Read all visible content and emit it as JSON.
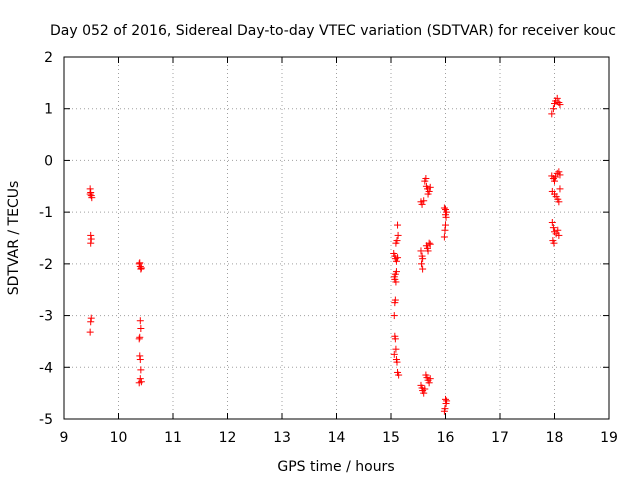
{
  "chart_data": {
    "type": "scatter",
    "title": "Day 052 of 2016, Sidereal Day-to-day VTEC variation (SDTVAR) for receiver kouc",
    "xlabel": "GPS time / hours",
    "ylabel": "SDTVAR / TECUs",
    "xlim": [
      9,
      19
    ],
    "ylim": [
      -5,
      2
    ],
    "xticks": [
      "9",
      "10",
      "11",
      "12",
      "13",
      "14",
      "15",
      "16",
      "17",
      "18",
      "19"
    ],
    "yticks": [
      "2",
      "1",
      "0",
      "-1",
      "-2",
      "-3",
      "-4",
      "-5"
    ],
    "grid": true,
    "marker": "+",
    "color": "#ff0000",
    "series": [
      {
        "name": "SDTVAR",
        "points": [
          [
            9.48,
            -0.55
          ],
          [
            9.49,
            -0.62
          ],
          [
            9.5,
            -0.68
          ],
          [
            9.51,
            -0.72
          ],
          [
            9.48,
            -0.65
          ],
          [
            9.49,
            -1.45
          ],
          [
            9.5,
            -1.52
          ],
          [
            9.49,
            -1.6
          ],
          [
            9.5,
            -3.05
          ],
          [
            9.49,
            -3.12
          ],
          [
            9.48,
            -3.32
          ],
          [
            10.38,
            -2.0
          ],
          [
            10.4,
            -2.05
          ],
          [
            10.42,
            -2.08
          ],
          [
            10.39,
            -1.98
          ],
          [
            10.41,
            -2.1
          ],
          [
            10.4,
            -3.1
          ],
          [
            10.41,
            -3.25
          ],
          [
            10.39,
            -3.42
          ],
          [
            10.38,
            -3.45
          ],
          [
            10.39,
            -3.78
          ],
          [
            10.4,
            -3.85
          ],
          [
            10.41,
            -4.05
          ],
          [
            10.4,
            -4.22
          ],
          [
            10.42,
            -4.28
          ],
          [
            10.38,
            -4.3
          ],
          [
            15.05,
            -1.8
          ],
          [
            15.07,
            -1.85
          ],
          [
            15.08,
            -1.9
          ],
          [
            15.1,
            -1.95
          ],
          [
            15.12,
            -1.88
          ],
          [
            15.09,
            -1.6
          ],
          [
            15.11,
            -1.55
          ],
          [
            15.13,
            -1.45
          ],
          [
            15.12,
            -1.25
          ],
          [
            15.08,
            -2.2
          ],
          [
            15.06,
            -2.25
          ],
          [
            15.07,
            -2.3
          ],
          [
            15.09,
            -2.35
          ],
          [
            15.1,
            -2.15
          ],
          [
            15.08,
            -2.7
          ],
          [
            15.07,
            -2.75
          ],
          [
            15.06,
            -3.0
          ],
          [
            15.07,
            -3.4
          ],
          [
            15.08,
            -3.45
          ],
          [
            15.09,
            -3.65
          ],
          [
            15.06,
            -3.75
          ],
          [
            15.1,
            -3.85
          ],
          [
            15.11,
            -3.9
          ],
          [
            15.12,
            -4.1
          ],
          [
            15.14,
            -4.15
          ],
          [
            15.55,
            -0.8
          ],
          [
            15.57,
            -0.85
          ],
          [
            15.6,
            -0.78
          ],
          [
            15.62,
            -0.4
          ],
          [
            15.64,
            -0.35
          ],
          [
            15.65,
            -0.5
          ],
          [
            15.67,
            -0.55
          ],
          [
            15.7,
            -0.6
          ],
          [
            15.68,
            -0.65
          ],
          [
            15.72,
            -0.52
          ],
          [
            15.55,
            -1.75
          ],
          [
            15.57,
            -1.85
          ],
          [
            15.58,
            -1.9
          ],
          [
            15.56,
            -2.0
          ],
          [
            15.58,
            -2.1
          ],
          [
            15.65,
            -1.65
          ],
          [
            15.67,
            -1.7
          ],
          [
            15.7,
            -1.6
          ],
          [
            15.72,
            -1.62
          ],
          [
            15.68,
            -1.75
          ],
          [
            15.55,
            -4.35
          ],
          [
            15.57,
            -4.4
          ],
          [
            15.58,
            -4.45
          ],
          [
            15.6,
            -4.5
          ],
          [
            15.62,
            -4.42
          ],
          [
            15.66,
            -4.2
          ],
          [
            15.68,
            -4.25
          ],
          [
            15.7,
            -4.3
          ],
          [
            15.72,
            -4.22
          ],
          [
            15.64,
            -4.15
          ],
          [
            15.98,
            -0.92
          ],
          [
            16.0,
            -0.95
          ],
          [
            16.02,
            -1.0
          ],
          [
            16.0,
            -1.05
          ],
          [
            16.01,
            -1.1
          ],
          [
            16.0,
            -1.25
          ],
          [
            15.99,
            -1.35
          ],
          [
            15.98,
            -1.48
          ],
          [
            16.0,
            -4.62
          ],
          [
            16.01,
            -4.7
          ],
          [
            15.99,
            -4.8
          ],
          [
            15.98,
            -4.85
          ],
          [
            16.02,
            -4.65
          ],
          [
            17.95,
            0.9
          ],
          [
            17.98,
            1.0
          ],
          [
            18.0,
            1.1
          ],
          [
            18.02,
            1.15
          ],
          [
            18.05,
            1.2
          ],
          [
            18.08,
            1.12
          ],
          [
            18.1,
            1.08
          ],
          [
            17.95,
            -0.3
          ],
          [
            17.98,
            -0.35
          ],
          [
            18.0,
            -0.4
          ],
          [
            18.02,
            -0.32
          ],
          [
            18.05,
            -0.25
          ],
          [
            18.08,
            -0.22
          ],
          [
            18.1,
            -0.28
          ],
          [
            17.96,
            -0.6
          ],
          [
            18.0,
            -0.65
          ],
          [
            18.03,
            -0.7
          ],
          [
            18.06,
            -0.75
          ],
          [
            18.08,
            -0.8
          ],
          [
            18.1,
            -0.55
          ],
          [
            17.96,
            -1.2
          ],
          [
            17.98,
            -1.3
          ],
          [
            18.0,
            -1.38
          ],
          [
            18.03,
            -1.42
          ],
          [
            18.06,
            -1.35
          ],
          [
            18.08,
            -1.45
          ],
          [
            17.97,
            -1.55
          ],
          [
            17.99,
            -1.6
          ]
        ]
      }
    ]
  }
}
